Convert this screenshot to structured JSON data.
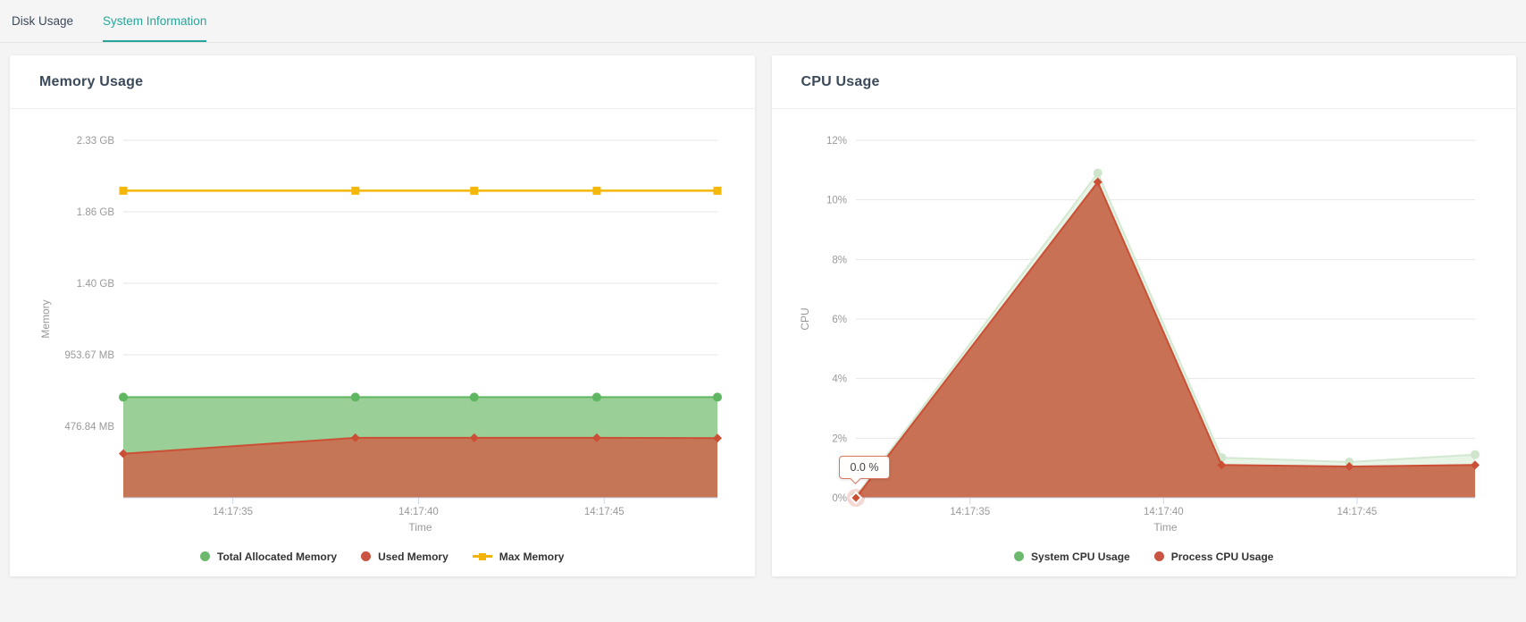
{
  "tabs": {
    "items": [
      {
        "label": "Disk Usage",
        "active": false
      },
      {
        "label": "System Information",
        "active": true
      }
    ]
  },
  "colors": {
    "accent_teal": "#26a69a",
    "green": "#5fb762",
    "red": "#cb4f35",
    "yellow": "#f5b70a",
    "pale_green": "#d4e9d2",
    "axis_line": "#ccd6eb",
    "grid_line": "#e6e6e6",
    "tick_text": "#999999"
  },
  "cards": [
    {
      "title": "Memory Usage"
    },
    {
      "title": "CPU Usage"
    }
  ],
  "chart_data": [
    {
      "type": "area",
      "title": "Memory Usage",
      "xlabel": "Time",
      "ylabel": "Memory",
      "x": [
        32.05,
        38.3,
        41.5,
        44.8,
        48.05
      ],
      "x_range": [
        32.05,
        48.05
      ],
      "x_ticks": [
        {
          "v": 35,
          "label": "14:17:35"
        },
        {
          "v": 40,
          "label": "14:17:40"
        },
        {
          "v": 45,
          "label": "14:17:45"
        }
      ],
      "y_range": [
        0,
        2384.19
      ],
      "y_unit": "MiB",
      "y_ticks": [
        {
          "v": 476.84,
          "label": "476.84 MB"
        },
        {
          "v": 953.67,
          "label": "953.67 MB"
        },
        {
          "v": 1430.51,
          "label": "1.40 GB"
        },
        {
          "v": 1907.35,
          "label": "1.86 GB"
        },
        {
          "v": 2384.19,
          "label": "2.33 GB"
        }
      ],
      "series": [
        {
          "name": "Total Allocated Memory",
          "marker": "circle",
          "line": "#5fb762",
          "fill": "#8fcb8d",
          "fill_opacity": 0.9,
          "legend_color": "#6cb96d",
          "legend_marker": "dot",
          "values": [
            671,
            671,
            671,
            671,
            671
          ]
        },
        {
          "name": "Used Memory",
          "marker": "diamond",
          "line": "#cb4f35",
          "fill": "#c67355",
          "fill_opacity": 0.97,
          "legend_color": "#ca5441",
          "legend_marker": "dot",
          "values": [
            294,
            400,
            400,
            400,
            398
          ]
        },
        {
          "name": "Max Memory",
          "marker": "square",
          "line": "#f5b70a",
          "area": false,
          "legend_color": "#f2b40a",
          "legend_marker": "line-square",
          "values": [
            2048,
            2048,
            2048,
            2048,
            2048
          ]
        }
      ]
    },
    {
      "type": "area",
      "title": "CPU Usage",
      "xlabel": "Time",
      "ylabel": "CPU",
      "x": [
        32.05,
        38.3,
        41.5,
        44.8,
        48.05
      ],
      "x_range": [
        32.05,
        48.05
      ],
      "x_ticks": [
        {
          "v": 35,
          "label": "14:17:35"
        },
        {
          "v": 40,
          "label": "14:17:40"
        },
        {
          "v": 45,
          "label": "14:17:45"
        }
      ],
      "y_range": [
        0,
        12
      ],
      "y_unit": "%",
      "y_ticks": [
        {
          "v": 0,
          "label": "0%"
        },
        {
          "v": 2,
          "label": "2%"
        },
        {
          "v": 4,
          "label": "4%"
        },
        {
          "v": 6,
          "label": "6%"
        },
        {
          "v": 8,
          "label": "8%"
        },
        {
          "v": 10,
          "label": "10%"
        },
        {
          "v": 12,
          "label": "12%"
        }
      ],
      "series": [
        {
          "name": "System CPU Usage",
          "marker": "circle",
          "line": "#d4e9d2",
          "marker_color": "#cfe5cc",
          "fill": "#e4f2e2",
          "fill_opacity": 0.85,
          "legend_color": "#6cb96d",
          "legend_marker": "dot",
          "values": [
            0.05,
            10.9,
            1.35,
            1.2,
            1.45
          ]
        },
        {
          "name": "Process CPU Usage",
          "marker": "diamond",
          "line": "#cb4f35",
          "fill": "#c97154",
          "fill_opacity": 1,
          "legend_color": "#ca5441",
          "legend_marker": "dot",
          "values": [
            0,
            10.6,
            1.1,
            1.05,
            1.1
          ]
        }
      ],
      "tooltip": {
        "text": "0.0 %",
        "series_index": 1,
        "point_index": 0
      }
    }
  ]
}
